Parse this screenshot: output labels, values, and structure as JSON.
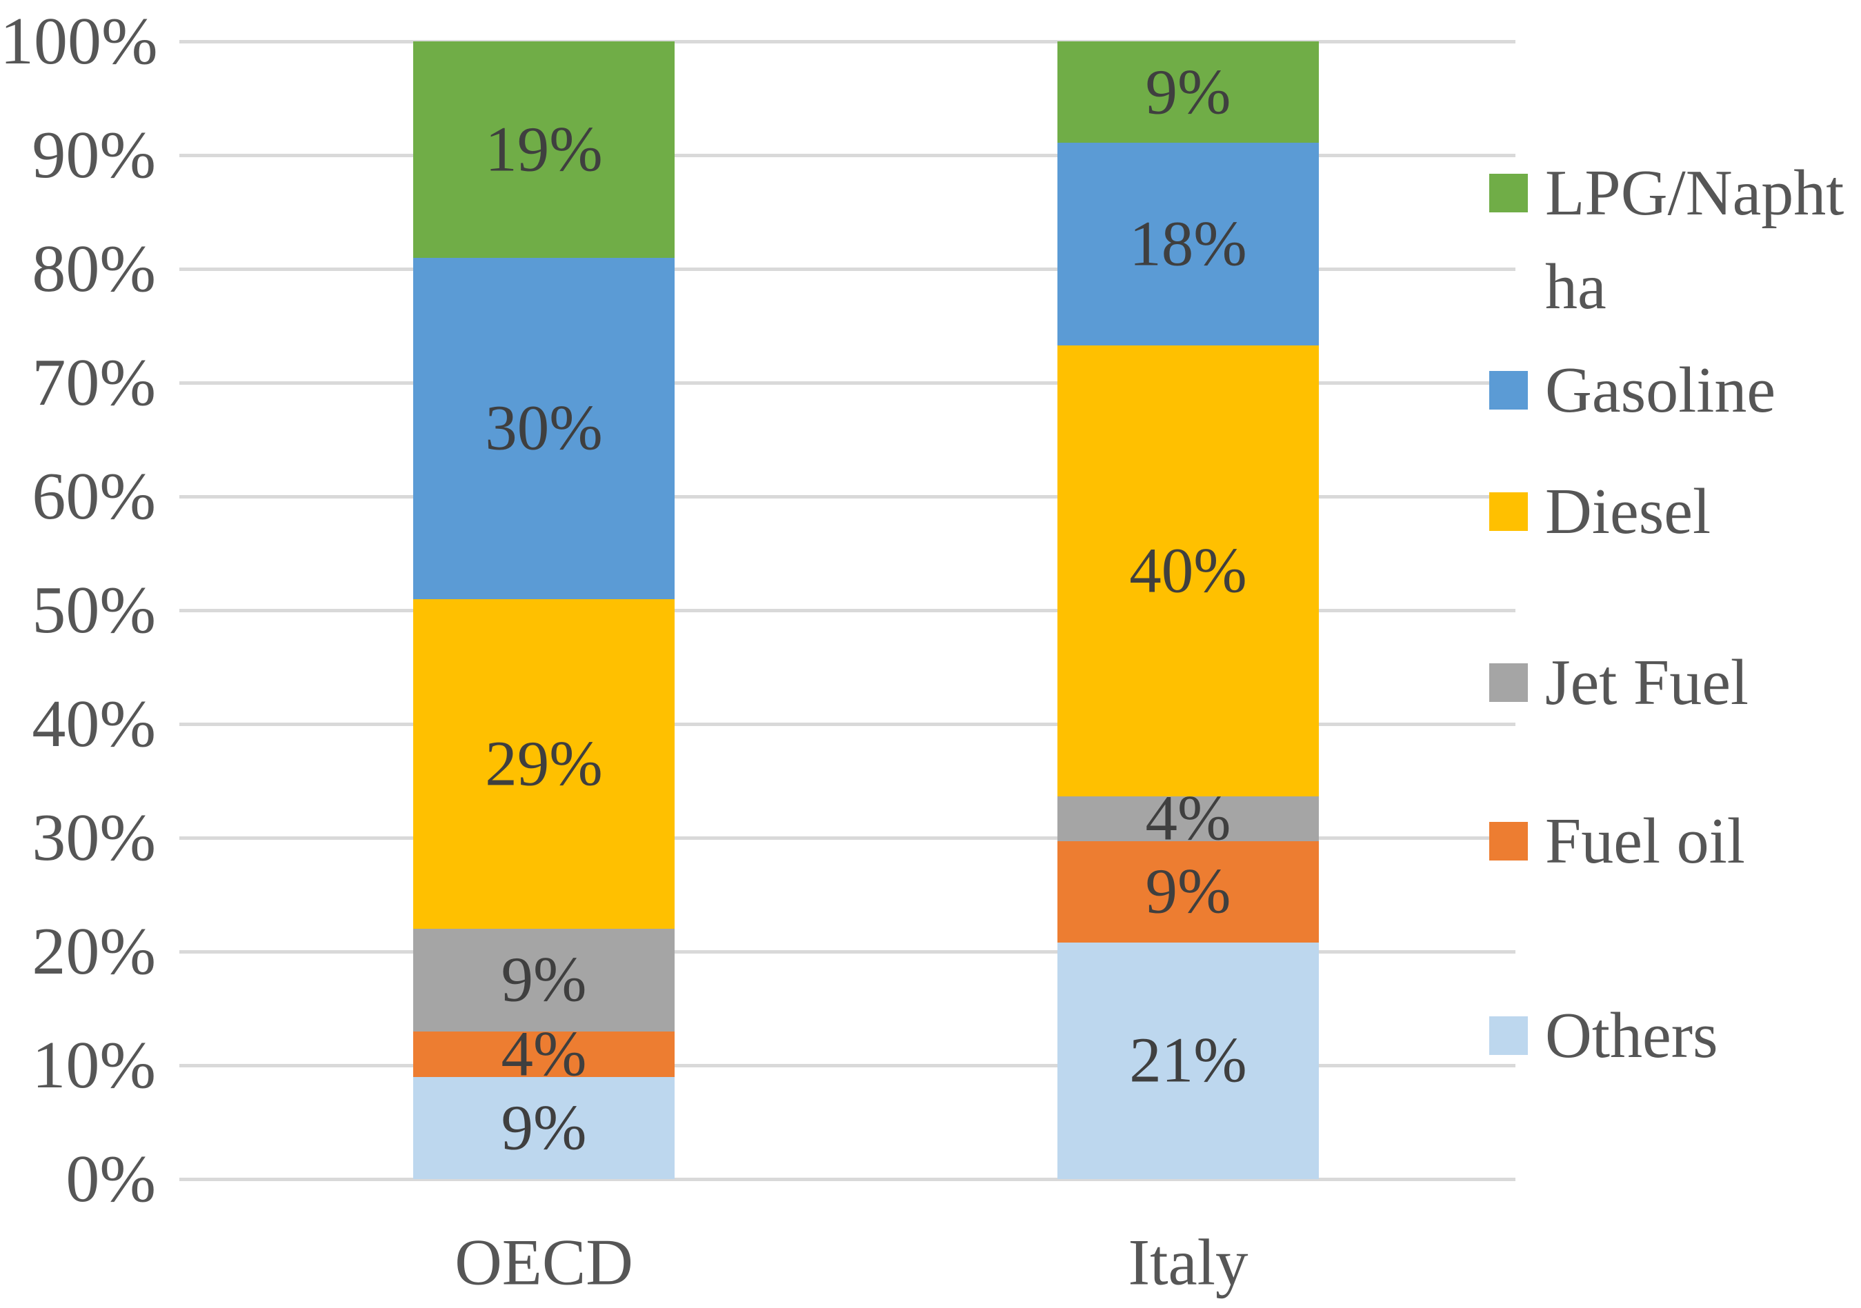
{
  "chart_data": {
    "type": "bar",
    "subtype": "stacked-100-percent",
    "title": "",
    "xlabel": "",
    "ylabel": "",
    "grid": true,
    "legend_position": "right",
    "categories": [
      "OECD",
      "Italy"
    ],
    "series": [
      {
        "name": "Others",
        "color": "#BDD7EE",
        "values": [
          9,
          21
        ],
        "labels": [
          "9%",
          "21%"
        ]
      },
      {
        "name": "Fuel oil",
        "color": "#ED7D31",
        "values": [
          4,
          9
        ],
        "labels": [
          "4%",
          "9%"
        ]
      },
      {
        "name": "Jet Fuel",
        "color": "#A5A5A5",
        "values": [
          9,
          4
        ],
        "labels": [
          "9%",
          "4%"
        ]
      },
      {
        "name": "Diesel",
        "color": "#FFC000",
        "values": [
          29,
          40
        ],
        "labels": [
          "29%",
          "40%"
        ]
      },
      {
        "name": "Gasoline",
        "color": "#5B9BD5",
        "values": [
          30,
          18
        ],
        "labels": [
          "30%",
          "18%"
        ]
      },
      {
        "name": "LPG/Naphtha",
        "color": "#70AD47",
        "values": [
          19,
          9
        ],
        "labels": [
          "19%",
          "9%"
        ]
      }
    ],
    "y_axis": {
      "min": 0,
      "max": 100,
      "tick_step": 10,
      "tick_labels": [
        "0%",
        "10%",
        "20%",
        "30%",
        "40%",
        "50%",
        "60%",
        "70%",
        "80%",
        "90%",
        "100%"
      ]
    },
    "legend_entries": [
      {
        "label": "LPG/Naphtha",
        "display_lines": [
          "LPG/Napht",
          "ha"
        ],
        "color": "#70AD47"
      },
      {
        "label": "Gasoline",
        "display_lines": [
          "Gasoline"
        ],
        "color": "#5B9BD5"
      },
      {
        "label": "Diesel",
        "display_lines": [
          "Diesel"
        ],
        "color": "#FFC000"
      },
      {
        "label": "Jet Fuel",
        "display_lines": [
          "Jet Fuel"
        ],
        "color": "#A5A5A5"
      },
      {
        "label": "Fuel oil",
        "display_lines": [
          "Fuel oil"
        ],
        "color": "#ED7D31"
      },
      {
        "label": "Others",
        "display_lines": [
          "Others"
        ],
        "color": "#BDD7EE"
      }
    ],
    "colors": {
      "axis_text": "#565656",
      "data_label_text": "#3F3F3F",
      "legend_text": "#565656",
      "gridline": "#D9D9D9",
      "background": "#FFFFFF"
    }
  }
}
